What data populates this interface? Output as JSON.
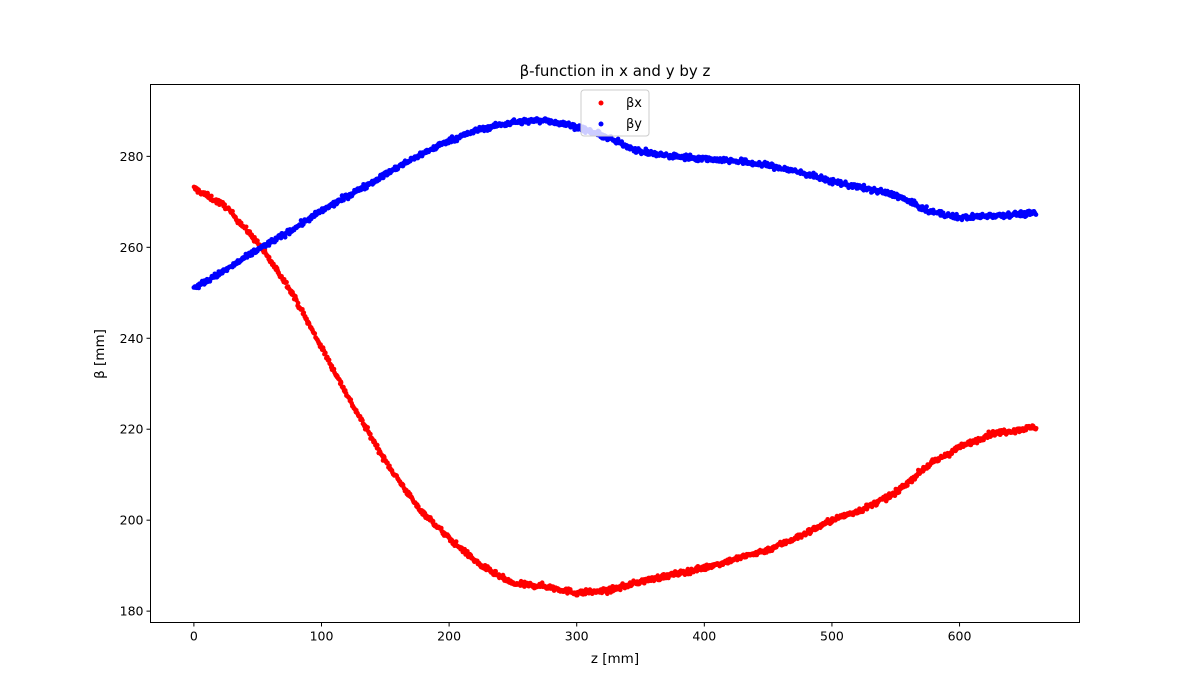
{
  "chart_data": {
    "type": "scatter",
    "title": "β-function in x and y by z",
    "xlabel": "z [mm]",
    "ylabel": "β [mm]",
    "xlim": [
      -34,
      694
    ],
    "ylim": [
      177.5,
      295.8
    ],
    "xticks": [
      0,
      100,
      200,
      300,
      400,
      500,
      600
    ],
    "yticks": [
      180,
      200,
      220,
      240,
      260,
      280
    ],
    "grid": false,
    "legend": "upper center",
    "series": [
      {
        "name": "βx",
        "color": "#ff0000",
        "x": [
          0,
          25,
          50,
          75,
          100,
          125,
          150,
          175,
          200,
          225,
          250,
          275,
          300,
          325,
          350,
          375,
          400,
          425,
          450,
          475,
          500,
          525,
          550,
          575,
          600,
          625,
          660
        ],
        "y": [
          273,
          269,
          261,
          251,
          238,
          225,
          213,
          203,
          196,
          190,
          186,
          185.5,
          184,
          184.5,
          186.5,
          188,
          189.5,
          191.5,
          193.5,
          196.5,
          200,
          202.5,
          206,
          212,
          216,
          219,
          220.5
        ]
      },
      {
        "name": "βy",
        "color": "#0000ff",
        "x": [
          0,
          25,
          50,
          75,
          100,
          125,
          150,
          175,
          200,
          225,
          250,
          275,
          300,
          325,
          350,
          375,
          400,
          425,
          450,
          475,
          500,
          525,
          550,
          575,
          600,
          625,
          660
        ],
        "y": [
          251,
          255,
          259.5,
          263.5,
          268,
          272,
          276,
          280,
          283.5,
          286,
          287.5,
          288,
          286.5,
          284,
          281,
          280,
          279.5,
          279,
          278,
          276.5,
          274.5,
          273,
          271.5,
          268,
          266.5,
          267,
          267.5
        ]
      }
    ]
  }
}
